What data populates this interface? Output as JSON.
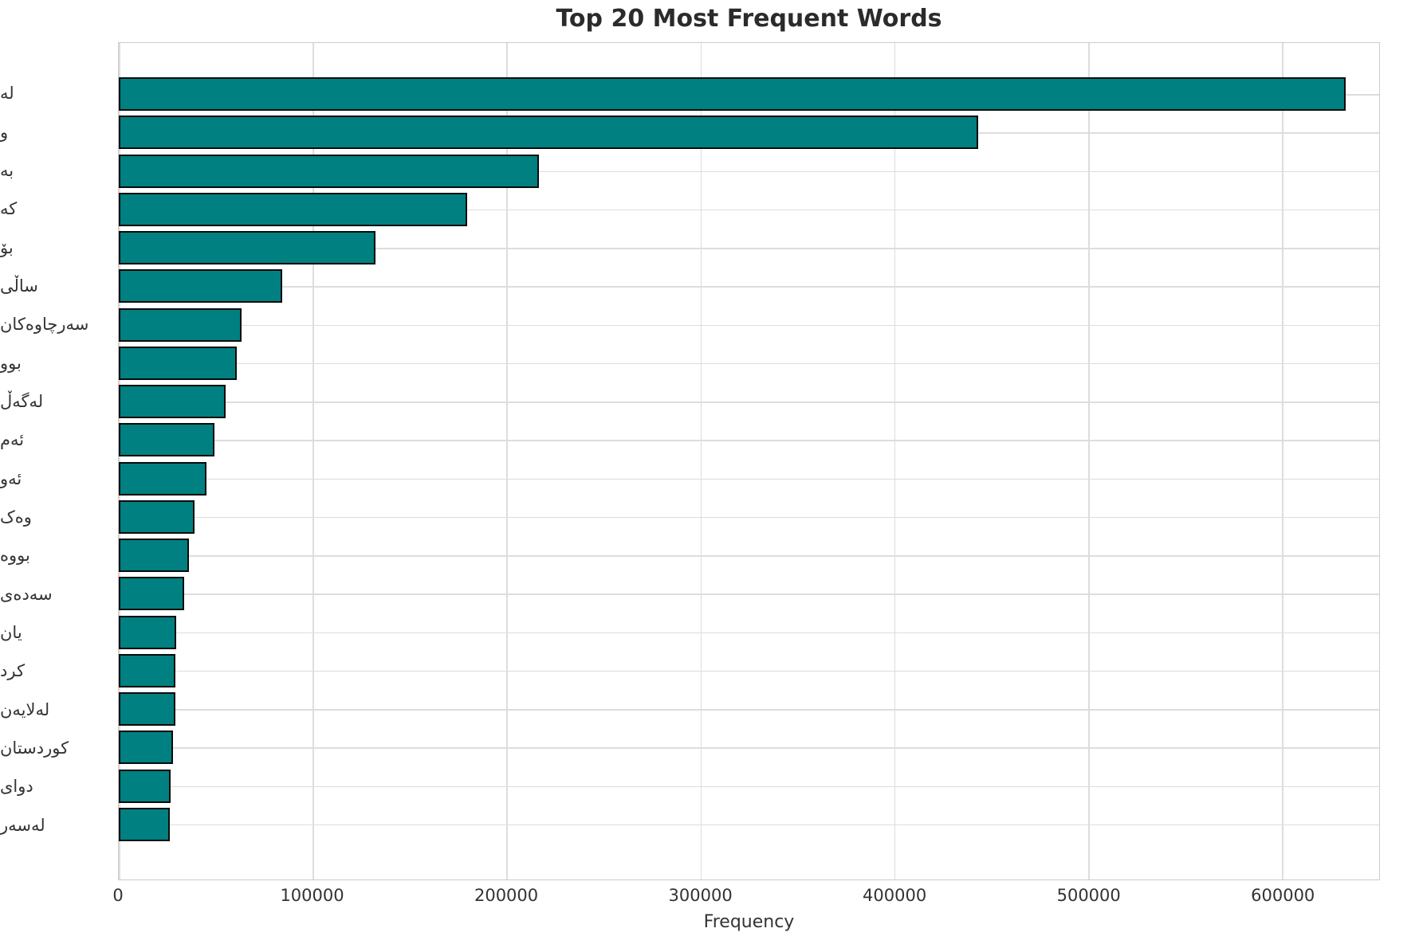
{
  "chart_data": {
    "type": "bar",
    "orientation": "horizontal",
    "title": "Top 20 Most Frequent Words",
    "xlabel": "Frequency",
    "ylabel": "",
    "categories": [
      "لە",
      "و",
      "بە",
      "کە",
      "بۆ",
      "ساڵی",
      "سەرچاوەکان",
      "بوو",
      "لەگەڵ",
      "ئەم",
      "ئەو",
      "وەک",
      "بووە",
      "سەدەی",
      "یان",
      "کرد",
      "لەلایەن",
      "کوردستان",
      "دوای",
      "لەسەر"
    ],
    "values": [
      632700,
      443100,
      216600,
      179800,
      132300,
      84400,
      63500,
      61000,
      54900,
      49500,
      45400,
      38900,
      36000,
      33600,
      29500,
      29100,
      29000,
      27800,
      26600,
      26200
    ],
    "xlim": [
      0,
      650000
    ],
    "xticks": [
      0,
      100000,
      200000,
      300000,
      400000,
      500000,
      600000
    ],
    "grid": true,
    "legend": "none",
    "bar_color": "#008080",
    "bar_edge_color": "#0a0a0a",
    "grid_color": "#dddddd",
    "background": "#ffffff",
    "text_color": "#333333",
    "title_color": "#2b2b2b"
  }
}
